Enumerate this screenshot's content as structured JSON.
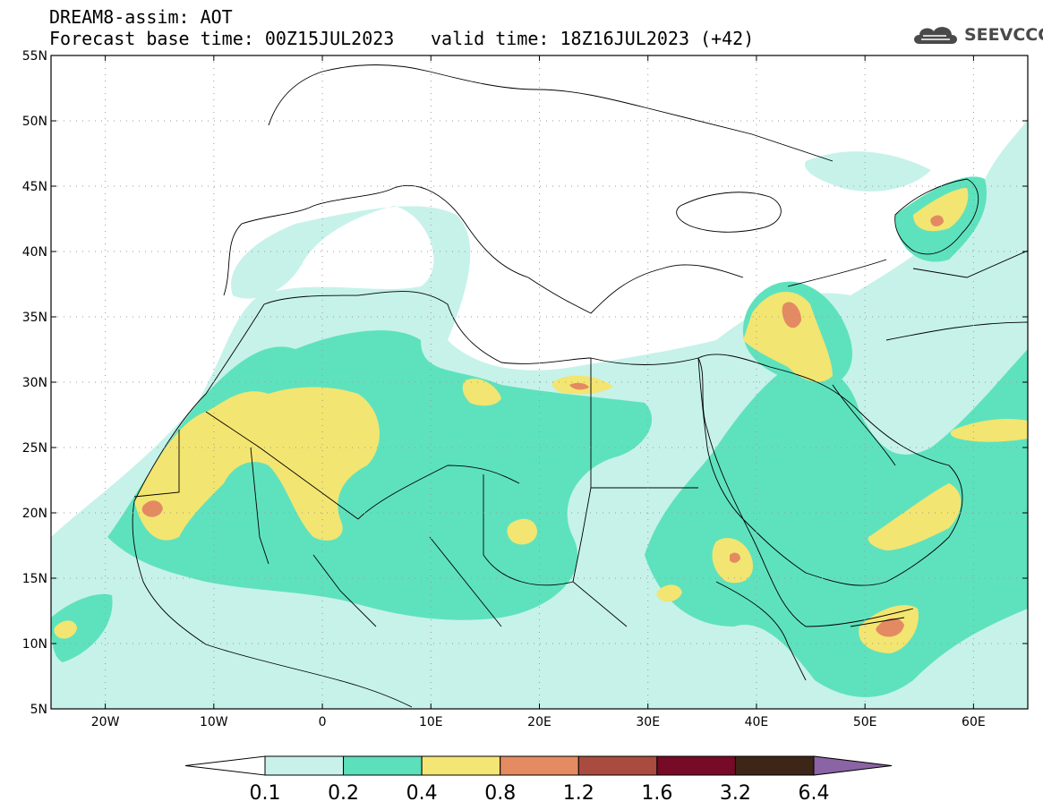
{
  "header": {
    "title": "DREAM8-assim: AOT",
    "base_time": "Forecast base time: 00Z15JUL2023",
    "valid_time": "valid time: 18Z16JUL2023 (+42)"
  },
  "logo": {
    "text": "SEEVCCC",
    "icon": "cloud-icon"
  },
  "map": {
    "lon_range": [
      -25,
      65
    ],
    "lat_range": [
      5,
      55
    ],
    "lon_ticks": [
      {
        "value": -20,
        "label": "20W"
      },
      {
        "value": -10,
        "label": "10W"
      },
      {
        "value": 0,
        "label": "0"
      },
      {
        "value": 10,
        "label": "10E"
      },
      {
        "value": 20,
        "label": "20E"
      },
      {
        "value": 30,
        "label": "30E"
      },
      {
        "value": 40,
        "label": "40E"
      },
      {
        "value": 50,
        "label": "50E"
      },
      {
        "value": 60,
        "label": "60E"
      }
    ],
    "lat_ticks": [
      {
        "value": 5,
        "label": "5N"
      },
      {
        "value": 10,
        "label": "10N"
      },
      {
        "value": 15,
        "label": "15N"
      },
      {
        "value": 20,
        "label": "20N"
      },
      {
        "value": 25,
        "label": "25N"
      },
      {
        "value": 30,
        "label": "30N"
      },
      {
        "value": 35,
        "label": "35N"
      },
      {
        "value": 40,
        "label": "40N"
      },
      {
        "value": 45,
        "label": "45N"
      },
      {
        "value": 50,
        "label": "50N"
      },
      {
        "value": 55,
        "label": "55N"
      }
    ],
    "grid": true,
    "colors": {
      "land_line": "#000000",
      "grid": "#9a9a9a",
      "aot_01": "#c6f2ea",
      "aot_02": "#5ee2bd",
      "aot_04": "#f3e571",
      "aot_08": "#e48a63",
      "aot_12": "#a94c3f"
    }
  },
  "colorbar": {
    "levels": [
      "0.1",
      "0.2",
      "0.4",
      "0.8",
      "1.2",
      "1.6",
      "3.2",
      "6.4"
    ],
    "colors": [
      "#c8f1ea",
      "#5ce0bb",
      "#f4e674",
      "#e48b62",
      "#aa4b40",
      "#760a27",
      "#3d2518",
      "#8a64a4"
    ],
    "low_extend_color": "#ffffff"
  }
}
